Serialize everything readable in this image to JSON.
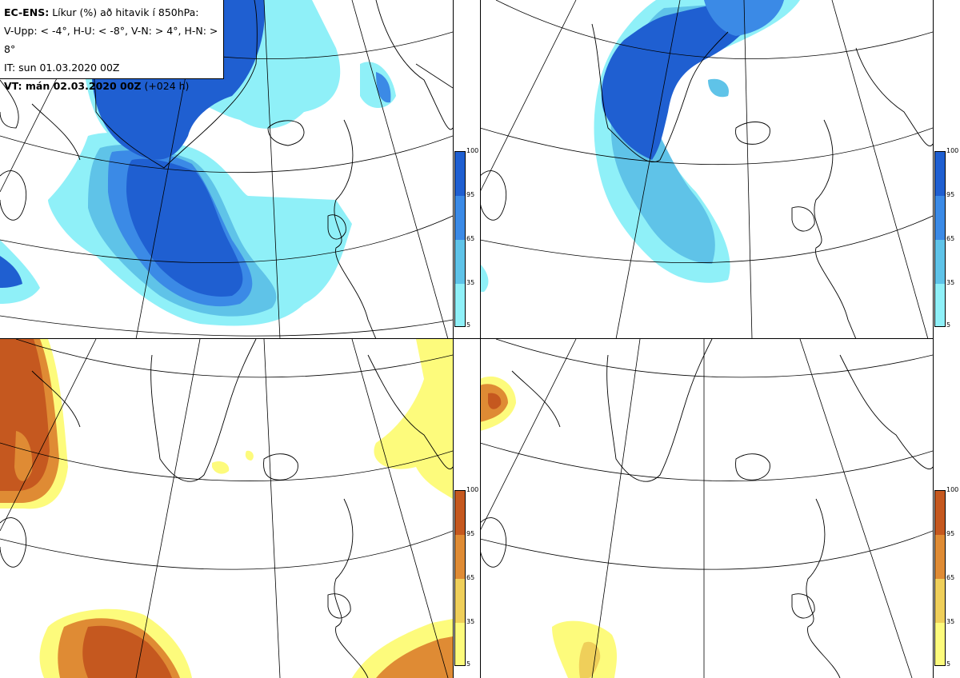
{
  "header": {
    "model": "EC-ENS:",
    "description": "Líkur (%) að hitavik í 850hPa:",
    "thresholds": "V-Upp: < -4°, H-U: < -8°, V-N: > 4°, H-N: > 8°",
    "init_time": "IT: sun 01.03.2020 00Z",
    "valid_label": "VT: mán 02.03.2020 00Z",
    "lead": "(+024 h)"
  },
  "panels": [
    {
      "id": "tl",
      "name": "V-Upp",
      "palette": "blue"
    },
    {
      "id": "tr",
      "name": "H-U",
      "palette": "blue"
    },
    {
      "id": "bl",
      "name": "V-N",
      "palette": "orange"
    },
    {
      "id": "br",
      "name": "H-N",
      "palette": "orange"
    }
  ],
  "colorbar": {
    "ticks": [
      "100",
      "95",
      "65",
      "35",
      "5"
    ],
    "blue_colors": [
      "#1f5fd1",
      "#3b8ae6",
      "#5fc3e8",
      "#8ff0f8"
    ],
    "orange_colors": [
      "#c5581f",
      "#df8b34",
      "#efcf5a",
      "#fdfb7c"
    ]
  }
}
